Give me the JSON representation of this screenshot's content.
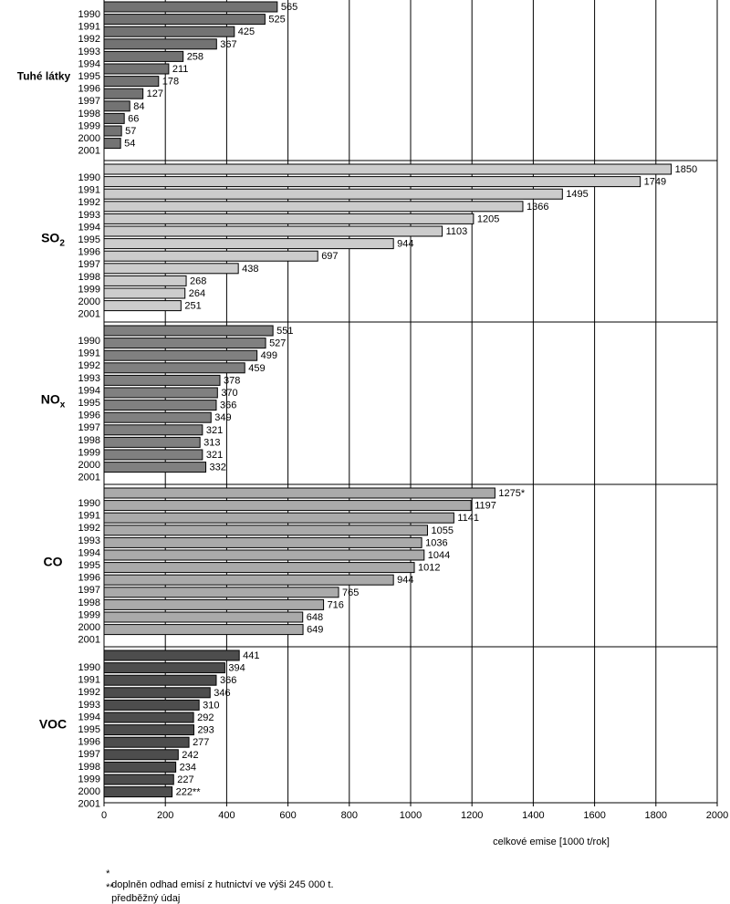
{
  "chart_data": {
    "type": "bar",
    "orientation": "horizontal",
    "title": "",
    "xlabel": "celkové emise [1000 t/rok]",
    "xlim": [
      0,
      2000
    ],
    "xticks": [
      0,
      200,
      400,
      600,
      800,
      1000,
      1200,
      1400,
      1600,
      1800,
      2000
    ],
    "grid": true,
    "year_labels": [
      "1990",
      "1991",
      "1992",
      "1993",
      "1994",
      "1995",
      "1996",
      "1997",
      "1998",
      "1999",
      "2000",
      "2001"
    ],
    "groups": [
      {
        "name": "Tuhé látky",
        "color": "#737373",
        "values": [
          565,
          525,
          425,
          367,
          258,
          211,
          178,
          127,
          84,
          66,
          57,
          54
        ],
        "labels": [
          "565",
          "525",
          "425",
          "367",
          "258",
          "211",
          "178",
          "127",
          "84",
          "66",
          "57",
          "54"
        ]
      },
      {
        "name": "SO",
        "name_sub": "2",
        "color": "#cccccc",
        "values": [
          1850,
          1749,
          1495,
          1366,
          1205,
          1103,
          944,
          697,
          438,
          268,
          264,
          251
        ],
        "labels": [
          "1850",
          "1749",
          "1495",
          "1366",
          "1205",
          "1103",
          "944",
          "697",
          "438",
          "268",
          "264",
          "251"
        ]
      },
      {
        "name": "NO",
        "name_sub": "x",
        "color": "#808080",
        "values": [
          551,
          527,
          499,
          459,
          378,
          370,
          366,
          349,
          321,
          313,
          321,
          332
        ],
        "labels": [
          "551",
          "527",
          "499",
          "459",
          "378",
          "370",
          "366",
          "349",
          "321",
          "313",
          "321",
          "332"
        ]
      },
      {
        "name": "CO",
        "color": "#aaaaaa",
        "values": [
          1275,
          1197,
          1141,
          1055,
          1036,
          1044,
          1012,
          944,
          765,
          716,
          648,
          649
        ],
        "labels": [
          "1275*",
          "1197",
          "1141",
          "1055",
          "1036",
          "1044",
          "1012",
          "944",
          "765",
          "716",
          "648",
          "649"
        ]
      },
      {
        "name": "VOC",
        "color": "#4d4d4d",
        "values": [
          441,
          394,
          366,
          346,
          310,
          292,
          293,
          277,
          242,
          234,
          227,
          222
        ],
        "labels": [
          "441",
          "394",
          "366",
          "346",
          "310",
          "292",
          "293",
          "277",
          "242",
          "234",
          "227",
          "222**"
        ]
      }
    ]
  },
  "footnotes": {
    "note1_mark": "*",
    "note1_text": "doplněn odhad emisí z hutnictví ve výši 245 000 t.",
    "note2_mark": "**",
    "note2_text": "předběžný údaj"
  }
}
